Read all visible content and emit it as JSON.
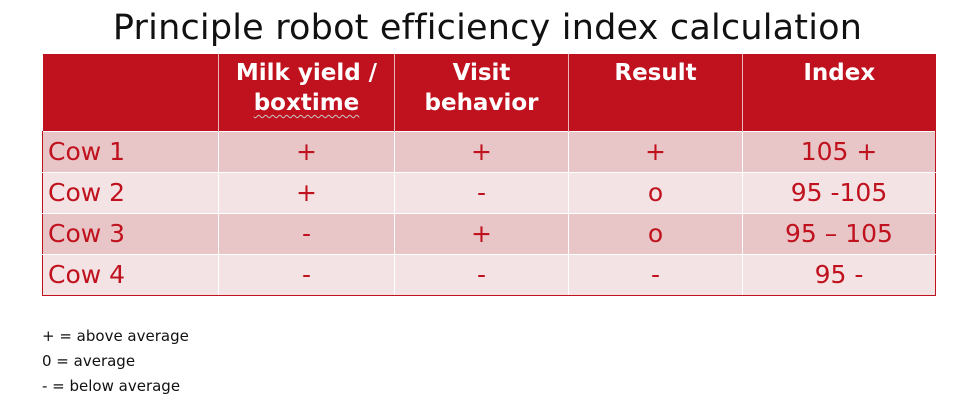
{
  "title": "Principle robot efficiency index calculation",
  "table": {
    "headers": [
      "",
      "Milk yield / boxtime",
      "Visit behavior",
      "Result",
      "Index"
    ],
    "header_lines": {
      "milk_line1": "Milk yield /",
      "milk_line2": "boxtime",
      "visit_line1": "Visit",
      "visit_line2": "behavior",
      "result": "Result",
      "index": "Index"
    },
    "rows": [
      {
        "label": "Cow 1",
        "milk": "+",
        "visit": "+",
        "result": "+",
        "index": "105 +"
      },
      {
        "label": "Cow 2",
        "milk": "+",
        "visit": "-",
        "result": "o",
        "index": "95 -105"
      },
      {
        "label": "Cow 3",
        "milk": "-",
        "visit": "+",
        "result": "o",
        "index": "95 – 105"
      },
      {
        "label": "Cow 4",
        "milk": "-",
        "visit": "-",
        "result": "-",
        "index": "95 -"
      }
    ]
  },
  "legend": [
    "+ = above average",
    "0 = average",
    "- = below average"
  ],
  "colors": {
    "header_bg": "#c0121e",
    "cell_text": "#c0121e",
    "row_odd_bg": "#e8c5c7",
    "row_even_bg": "#f4e3e4"
  }
}
